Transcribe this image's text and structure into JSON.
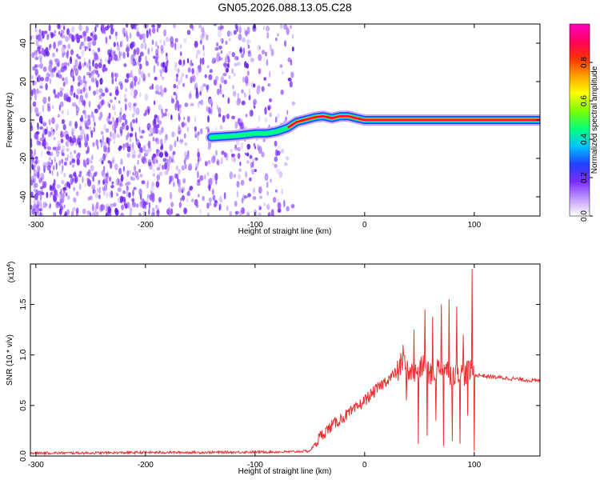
{
  "title": "GN05.2026.088.13.05.C28",
  "chart_data": [
    {
      "type": "heatmap",
      "title": "GN05.2026.088.13.05.C28",
      "xlabel": "Height of straight line (km)",
      "ylabel": "Frequency (Hz)",
      "xlim": [
        -305,
        160
      ],
      "ylim": [
        -50,
        50
      ],
      "x_ticks": [
        -300,
        -200,
        -100,
        0,
        100
      ],
      "y_ticks": [
        -40,
        -20,
        0,
        20,
        40
      ],
      "colorbar": {
        "label": "Normalized spectral amplitude",
        "range": [
          0.0,
          1.0
        ],
        "ticks": [
          "0.0",
          "0.2",
          "0.4",
          "0.6",
          "0.8"
        ],
        "tick_values": [
          0.0,
          0.2,
          0.4,
          0.6,
          0.8
        ],
        "colormap": [
          "#ffffff",
          "#c9a6ff",
          "#7a2cff",
          "#2040ff",
          "#00c0ff",
          "#00ff80",
          "#80ff00",
          "#ffff00",
          "#ffa000",
          "#ff3000",
          "#ff0060",
          "#ff00c0"
        ]
      },
      "noise_region_x": [
        -305,
        -65
      ],
      "ridge": {
        "x": [
          -140,
          -115,
          -100,
          -90,
          -80,
          -70,
          -62,
          -55,
          -45,
          -38,
          -30,
          -22,
          -15,
          -8,
          0,
          20,
          40,
          60,
          80,
          100,
          120,
          160
        ],
        "frequency": [
          -9,
          -8,
          -7,
          -7,
          -6,
          -4,
          -1,
          0,
          1.5,
          2,
          1,
          2,
          2,
          1,
          0,
          0,
          0,
          0,
          0,
          0,
          0,
          0
        ],
        "strong_from_x": -70
      }
    },
    {
      "type": "line",
      "xlabel": "Height of straight line (km)",
      "ylabel": "SNR (10 * v/v)",
      "y_multiplier": "(x10⁴)",
      "y_multiplier_base": "(x10",
      "y_multiplier_exp": "4",
      "y_multiplier_close": ")",
      "xlim": [
        -305,
        160
      ],
      "ylim": [
        0,
        1.9
      ],
      "x_ticks": [
        -300,
        -200,
        -100,
        0,
        100
      ],
      "y_ticks": [
        "0.0",
        "0.5",
        "1.0",
        "1.5"
      ],
      "y_tick_values": [
        0.0,
        0.5,
        1.0,
        1.5
      ],
      "series": [
        {
          "color": "#e83030",
          "x": [
            -305,
            -250,
            -200,
            -150,
            -100,
            -70,
            -50,
            -40,
            -30,
            -20,
            -10,
            0,
            10,
            20,
            30,
            35,
            40,
            45,
            50,
            55,
            60,
            65,
            70,
            75,
            80,
            85,
            90,
            95,
            100,
            105,
            110,
            120,
            130,
            140,
            150,
            160
          ],
          "y": [
            0.03,
            0.03,
            0.035,
            0.035,
            0.04,
            0.04,
            0.05,
            0.2,
            0.3,
            0.38,
            0.45,
            0.55,
            0.65,
            0.75,
            0.83,
            0.95,
            0.85,
            0.8,
            0.85,
            0.9,
            0.8,
            0.85,
            0.9,
            0.85,
            0.8,
            0.85,
            0.8,
            0.85,
            0.8,
            0.8,
            0.79,
            0.78,
            0.77,
            0.76,
            0.75,
            0.74
          ],
          "spikes": [
            {
              "x": 33,
              "y": 1.02
            },
            {
              "x": 35,
              "y": 1.1
            },
            {
              "x": 38,
              "y": 0.55
            },
            {
              "x": 45,
              "y": 1.25
            },
            {
              "x": 49,
              "y": 0.12
            },
            {
              "x": 55,
              "y": 1.45
            },
            {
              "x": 57,
              "y": 0.2
            },
            {
              "x": 62,
              "y": 1.38
            },
            {
              "x": 65,
              "y": 0.35
            },
            {
              "x": 70,
              "y": 1.5
            },
            {
              "x": 72,
              "y": 0.1
            },
            {
              "x": 77,
              "y": 1.55
            },
            {
              "x": 80,
              "y": 0.15
            },
            {
              "x": 84,
              "y": 1.48
            },
            {
              "x": 87,
              "y": 0.12
            },
            {
              "x": 90,
              "y": 1.2
            },
            {
              "x": 94,
              "y": 0.4
            },
            {
              "x": 98,
              "y": 1.85
            },
            {
              "x": 100,
              "y": 0.05
            }
          ]
        }
      ]
    }
  ]
}
